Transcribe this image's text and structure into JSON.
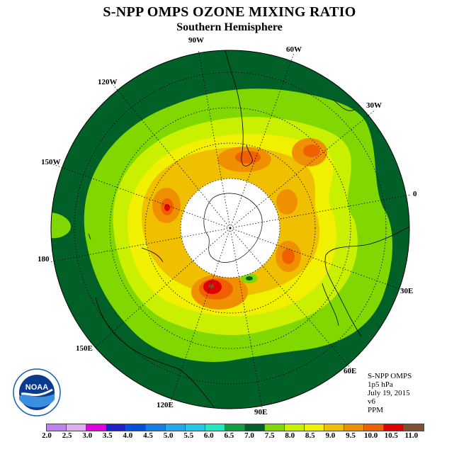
{
  "title": "S-NPP OMPS OZONE MIXING RATIO",
  "subtitle": "Southern Hemisphere",
  "longitude_labels": {
    "lon_90w": "90W",
    "lon_60w": "60W",
    "lon_30w": "30W",
    "lon_120w": "120W",
    "lon_150w": "150W",
    "lon_0": "0",
    "lon_180": "180",
    "lon_30e": "30E",
    "lon_150e": "150E",
    "lon_60e": "60E",
    "lon_120e": "120E",
    "lon_90e": "90E"
  },
  "info": {
    "line1": "S-NPP OMPS",
    "line2": "1p5 hPa",
    "line3": "July 19, 2015",
    "line4": "v6",
    "line5": "PPM"
  },
  "logo_text": "NOAA",
  "colorbar": {
    "labels": [
      "2.0",
      "2.5",
      "3.0",
      "3.5",
      "4.0",
      "4.5",
      "5.0",
      "5.5",
      "6.0",
      "6.5",
      "7.0",
      "7.5",
      "8.0",
      "8.5",
      "9.0",
      "9.5",
      "10.0",
      "10.5",
      "11.0"
    ],
    "colors": [
      "#c080f0",
      "#dcb0f0",
      "#e000e0",
      "#2020d0",
      "#0050e0",
      "#1080e8",
      "#20a8f0",
      "#20c8e8",
      "#20e8c0",
      "#10a040",
      "#006028",
      "#80d800",
      "#c8f000",
      "#f0f000",
      "#f0c000",
      "#f09000",
      "#f06000",
      "#e00000",
      "#805030"
    ]
  }
}
